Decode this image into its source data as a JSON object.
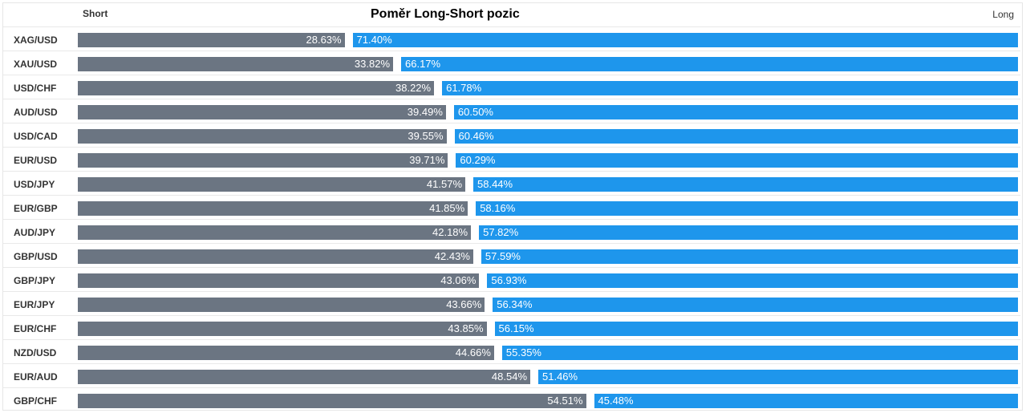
{
  "colors": {
    "short": "#6b7582",
    "long": "#1e96ec"
  },
  "header": {
    "short_label": "Short",
    "title": "Poměr Long-Short pozic",
    "long_label": "Long"
  },
  "chart_data": {
    "type": "bar",
    "orientation": "horizontal-stacked",
    "title": "Poměr Long-Short pozic",
    "series_labels": [
      "Short",
      "Long"
    ],
    "rows": [
      {
        "pair": "XAG/USD",
        "short": "28.63%",
        "long": "71.40%",
        "short_value": 28.63,
        "long_value": 71.4
      },
      {
        "pair": "XAU/USD",
        "short": "33.82%",
        "long": "66.17%",
        "short_value": 33.82,
        "long_value": 66.17
      },
      {
        "pair": "USD/CHF",
        "short": "38.22%",
        "long": "61.78%",
        "short_value": 38.22,
        "long_value": 61.78
      },
      {
        "pair": "AUD/USD",
        "short": "39.49%",
        "long": "60.50%",
        "short_value": 39.49,
        "long_value": 60.5
      },
      {
        "pair": "USD/CAD",
        "short": "39.55%",
        "long": "60.46%",
        "short_value": 39.55,
        "long_value": 60.46
      },
      {
        "pair": "EUR/USD",
        "short": "39.71%",
        "long": "60.29%",
        "short_value": 39.71,
        "long_value": 60.29
      },
      {
        "pair": "USD/JPY",
        "short": "41.57%",
        "long": "58.44%",
        "short_value": 41.57,
        "long_value": 58.44
      },
      {
        "pair": "EUR/GBP",
        "short": "41.85%",
        "long": "58.16%",
        "short_value": 41.85,
        "long_value": 58.16
      },
      {
        "pair": "AUD/JPY",
        "short": "42.18%",
        "long": "57.82%",
        "short_value": 42.18,
        "long_value": 57.82
      },
      {
        "pair": "GBP/USD",
        "short": "42.43%",
        "long": "57.59%",
        "short_value": 42.43,
        "long_value": 57.59
      },
      {
        "pair": "GBP/JPY",
        "short": "43.06%",
        "long": "56.93%",
        "short_value": 43.06,
        "long_value": 56.93
      },
      {
        "pair": "EUR/JPY",
        "short": "43.66%",
        "long": "56.34%",
        "short_value": 43.66,
        "long_value": 56.34
      },
      {
        "pair": "EUR/CHF",
        "short": "43.85%",
        "long": "56.15%",
        "short_value": 43.85,
        "long_value": 56.15
      },
      {
        "pair": "NZD/USD",
        "short": "44.66%",
        "long": "55.35%",
        "short_value": 44.66,
        "long_value": 55.35
      },
      {
        "pair": "EUR/AUD",
        "short": "48.54%",
        "long": "51.46%",
        "short_value": 48.54,
        "long_value": 51.46
      },
      {
        "pair": "GBP/CHF",
        "short": "54.51%",
        "long": "45.48%",
        "short_value": 54.51,
        "long_value": 45.48
      }
    ]
  }
}
